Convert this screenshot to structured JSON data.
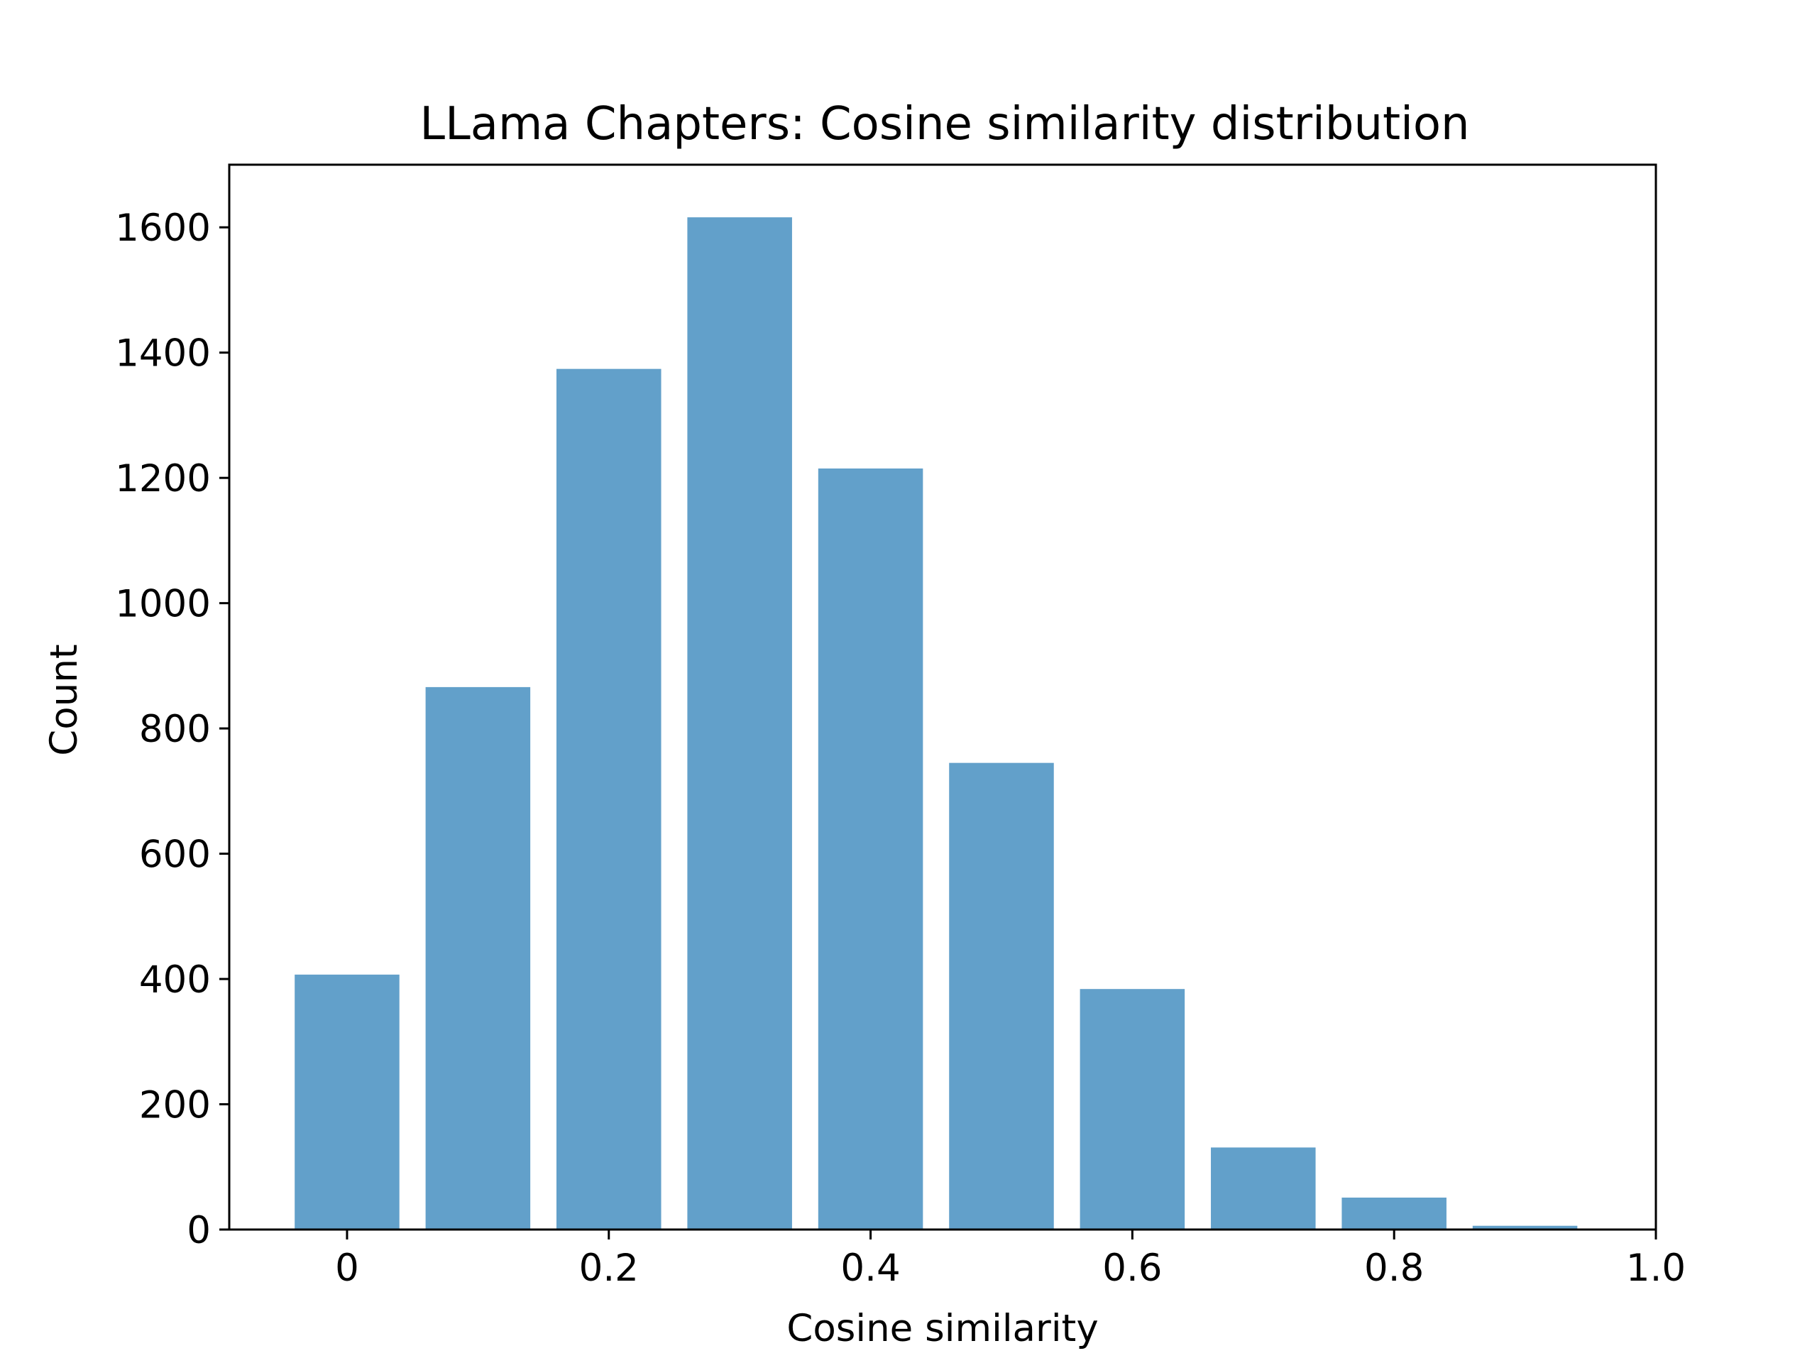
{
  "chart_data": {
    "type": "bar",
    "title": "LLama Chapters: Cosine similarity distribution",
    "xlabel": "Cosine similarity",
    "ylabel": "Count",
    "x": [
      0.0,
      0.1,
      0.2,
      0.3,
      0.4,
      0.5,
      0.6,
      0.7,
      0.8,
      0.9
    ],
    "values": [
      407,
      866,
      1374,
      1616,
      1215,
      745,
      384,
      131,
      51,
      6
    ],
    "bar_width": 0.08,
    "xlim": [
      -0.09,
      1.0
    ],
    "ylim": [
      0,
      1700
    ],
    "xticks": [
      0,
      0.2,
      0.4,
      0.6,
      0.8,
      1.0
    ],
    "xtick_labels": [
      "0",
      "0.2",
      "0.4",
      "0.6",
      "0.8",
      "1.0"
    ],
    "yticks": [
      0,
      200,
      400,
      600,
      800,
      1000,
      1200,
      1400,
      1600
    ],
    "ytick_labels": [
      "0",
      "200",
      "400",
      "600",
      "800",
      "1000",
      "1200",
      "1400",
      "1600"
    ],
    "bar_color": "#1f77b4",
    "bar_opacity": 0.7,
    "grid": false,
    "legend": "none"
  }
}
